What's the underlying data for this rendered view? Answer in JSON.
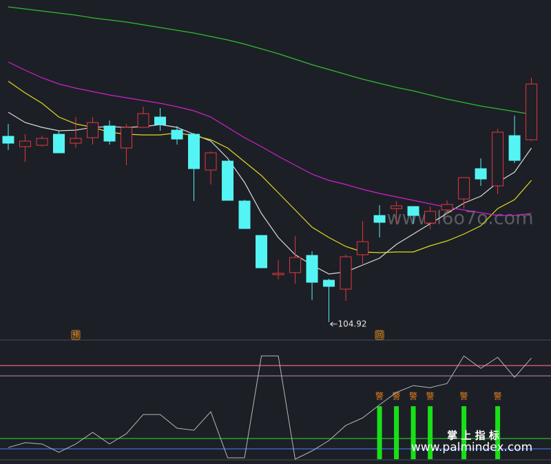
{
  "chart_data": [
    {
      "type": "candlestick",
      "xlim": [
        0.51,
        33.16
      ],
      "ylim": [
        102.7,
        151.7
      ],
      "x": [
        1,
        2,
        3,
        4,
        5,
        6,
        7,
        8,
        9,
        10,
        11,
        12,
        13,
        14,
        15,
        16,
        17,
        18,
        19,
        20,
        21,
        22,
        23,
        24,
        25,
        26,
        27,
        28,
        29,
        30,
        31,
        32
      ],
      "open": [
        131.9,
        130.4,
        130.6,
        132.2,
        130.9,
        131.7,
        133.4,
        130.2,
        133.2,
        134.7,
        132.8,
        132.2,
        127.0,
        128.3,
        122.5,
        117.5,
        111.8,
        112.1,
        114.6,
        111.0,
        109.7,
        114.7,
        120.4,
        121.4,
        121.7,
        119.3,
        121.2,
        122.8,
        127.2,
        124.7,
        132.0,
        131.4
      ],
      "high": [
        133.7,
        132.2,
        132.0,
        132.7,
        134.7,
        134.7,
        134.2,
        133.7,
        136.2,
        136.0,
        133.4,
        132.4,
        129.7,
        128.3,
        122.7,
        117.5,
        113.9,
        117.4,
        115.2,
        111.2,
        114.7,
        119.6,
        121.9,
        122.5,
        121.7,
        121.7,
        122.6,
        125.9,
        128.7,
        133.0,
        134.9,
        140.4
      ],
      "low": [
        129.9,
        128.2,
        130.4,
        129.5,
        130.2,
        130.7,
        130.7,
        127.7,
        133.2,
        132.7,
        130.7,
        122.5,
        124.9,
        122.6,
        118.5,
        112.8,
        111.1,
        110.5,
        108.1,
        104.92,
        108.0,
        113.2,
        117.2,
        119.1,
        119.2,
        118.4,
        120.7,
        121.4,
        124.7,
        123.5,
        128.0,
        131.2
      ],
      "close": [
        130.9,
        131.2,
        131.6,
        129.5,
        131.6,
        133.9,
        131.2,
        133.2,
        135.2,
        133.6,
        131.5,
        127.2,
        129.5,
        122.6,
        118.5,
        112.8,
        112.0,
        114.3,
        110.7,
        110.1,
        114.4,
        116.6,
        119.4,
        121.8,
        120.4,
        121.0,
        122.0,
        125.9,
        125.7,
        132.5,
        128.4,
        139.5
      ],
      "up_color": "#e5383d",
      "down_color": "#54f4f4",
      "series": [
        {
          "color": "#dcdcdc",
          "values": [
            135.4,
            133.9,
            133.2,
            132.7,
            132.8,
            133.2,
            133.3,
            133.2,
            133.3,
            133.6,
            133.2,
            132.2,
            131.2,
            128.7,
            125.2,
            120.7,
            117.2,
            114.7,
            113.2,
            111.9,
            112.2,
            113.2,
            114.2,
            116.2,
            117.7,
            119.2,
            120.7,
            122.2,
            123.2,
            125.2,
            126.7,
            130.2
          ]
        },
        {
          "color": "#e2dc1e",
          "values": [
            139.9,
            138.2,
            136.7,
            134.7,
            133.7,
            133.2,
            132.5,
            132.2,
            132.1,
            132.1,
            132.4,
            132.0,
            131.4,
            130.2,
            128.2,
            126.2,
            123.7,
            121.2,
            118.7,
            117.2,
            115.9,
            115.1,
            115.0,
            115.1,
            115.1,
            116.0,
            116.7,
            117.7,
            118.9,
            121.4,
            122.7,
            125.5
          ]
        },
        {
          "color": "#d021d0",
          "values": [
            142.7,
            141.5,
            140.4,
            139.5,
            138.9,
            138.4,
            137.9,
            137.5,
            137.1,
            136.7,
            136.2,
            135.6,
            134.7,
            133.2,
            131.7,
            130.4,
            129.0,
            127.7,
            126.4,
            125.5,
            124.9,
            124.2,
            123.6,
            123.1,
            122.6,
            122.1,
            121.6,
            121.2,
            120.8,
            120.4,
            120.4,
            120.7
          ]
        },
        {
          "color": "#2fbf2f",
          "values": [
            150.7,
            150.4,
            150.1,
            149.8,
            149.5,
            149.1,
            148.8,
            148.5,
            148.1,
            147.7,
            147.3,
            146.9,
            146.4,
            145.9,
            145.3,
            144.6,
            143.9,
            143.1,
            142.3,
            141.6,
            140.9,
            140.2,
            139.6,
            139.0,
            138.5,
            137.9,
            137.3,
            136.8,
            136.3,
            135.9,
            135.5,
            135.1
          ]
        }
      ],
      "annotations": [
        {
          "x": 5,
          "text": "预"
        },
        {
          "x": 23,
          "text": "回"
        }
      ]
    },
    {
      "type": "indicator",
      "xlim": [
        0.51,
        33.16
      ],
      "ylim": [
        0,
        114.7
      ],
      "x": [
        1,
        2,
        3,
        4,
        5,
        6,
        7,
        8,
        9,
        10,
        11,
        12,
        13,
        14,
        15,
        16,
        17,
        18,
        19,
        20,
        21,
        22,
        23,
        24,
        25,
        26,
        27,
        28,
        29,
        30,
        31,
        32
      ],
      "series": [
        {
          "color": "#b8b8b8",
          "values": [
            11.3,
            16,
            14.7,
            6.7,
            14.7,
            26,
            14.7,
            24.7,
            43.3,
            43.3,
            30,
            28,
            46,
            1.3,
            1.3,
            100,
            100,
            0,
            8,
            18,
            32.7,
            40,
            52.7,
            64.7,
            71.3,
            69.3,
            73.3,
            100,
            88,
            98.7,
            79.3,
            98
          ]
        }
      ],
      "hlines": [
        {
          "value": 90.7,
          "color": "#f0607a"
        },
        {
          "value": 80.7,
          "color": "#9a7a9a"
        },
        {
          "value": 20,
          "color": "#22c022"
        },
        {
          "value": 10,
          "color": "#3f6fe0"
        }
      ],
      "bars": {
        "color": "#18e018",
        "label_color": "#e8801c",
        "x": [
          23,
          24,
          25,
          26,
          28,
          30
        ],
        "values": [
          51.3,
          51.3,
          51.3,
          51.3,
          51.3,
          51.3
        ],
        "labels": [
          "警",
          "警",
          "警",
          "警",
          "警",
          "警"
        ]
      }
    }
  ],
  "watermarks": {
    "site": "www.l6o7o.com",
    "brand": "掌 上 指 标",
    "url": "www.palmindex.com"
  }
}
